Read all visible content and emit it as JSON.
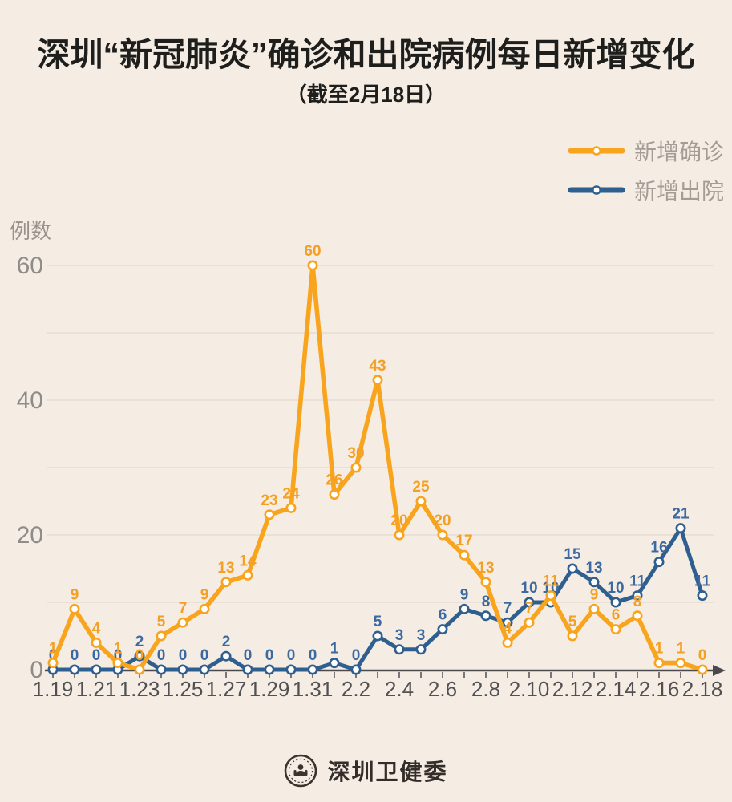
{
  "header": {
    "title": "深圳“新冠肺炎”确诊和出院病例每日新增变化",
    "subtitle": "（截至2月18日）"
  },
  "legend": {
    "confirmed": "新增确诊",
    "discharged": "新增出院"
  },
  "footer": {
    "publisher": "深圳卫健委"
  },
  "colors": {
    "background": "#f5ece4",
    "confirmed": "#f8a41d",
    "confirmed_label": "#f3a024",
    "discharged": "#2f5f8e",
    "discharged_label": "#3c6aa0",
    "grid": "#e7dcd2",
    "axis": "#4a4a4c",
    "tick": "#5a5a5e",
    "x_tick_text": "#515153",
    "y_tick_text": "#8e8c88"
  },
  "chart_data": {
    "type": "line",
    "title": "深圳“新冠肺炎”确诊和出院病例每日新增变化",
    "subtitle": "（截至2月18日）",
    "xlabel": "",
    "ylabel": "例数",
    "ylim": [
      0,
      60
    ],
    "y_ticks": [
      0,
      20,
      40,
      60
    ],
    "grid": "horizontal",
    "legend_position": "top-right",
    "categories": [
      "1.19",
      "1.20",
      "1.21",
      "1.22",
      "1.23",
      "1.24",
      "1.25",
      "1.26",
      "1.27",
      "1.28",
      "1.29",
      "1.30",
      "1.31",
      "2.1",
      "2.2",
      "2.3",
      "2.4",
      "2.5",
      "2.6",
      "2.7",
      "2.8",
      "2.9",
      "2.10",
      "2.11",
      "2.12",
      "2.13",
      "2.14",
      "2.15",
      "2.16",
      "2.17",
      "2.18"
    ],
    "x_tick_labels_shown": [
      "1.19",
      "1.21",
      "1.23",
      "1.25",
      "1.27",
      "1.29",
      "1.31",
      "2.2",
      "2.4",
      "2.6",
      "2.8",
      "2.10",
      "2.12",
      "2.14",
      "2.16",
      "2.18"
    ],
    "series": [
      {
        "name": "新增确诊",
        "color_key": "confirmed",
        "values": [
          1,
          9,
          4,
          1,
          0,
          5,
          7,
          9,
          13,
          14,
          23,
          24,
          60,
          26,
          30,
          43,
          20,
          25,
          20,
          17,
          13,
          4,
          7,
          11,
          5,
          9,
          6,
          8,
          1,
          1,
          0
        ]
      },
      {
        "name": "新增出院",
        "color_key": "discharged",
        "values": [
          0,
          0,
          0,
          0,
          2,
          0,
          0,
          0,
          2,
          0,
          0,
          0,
          0,
          1,
          0,
          5,
          3,
          3,
          6,
          9,
          8,
          7,
          10,
          10,
          15,
          13,
          10,
          11,
          16,
          21,
          11
        ]
      }
    ]
  }
}
